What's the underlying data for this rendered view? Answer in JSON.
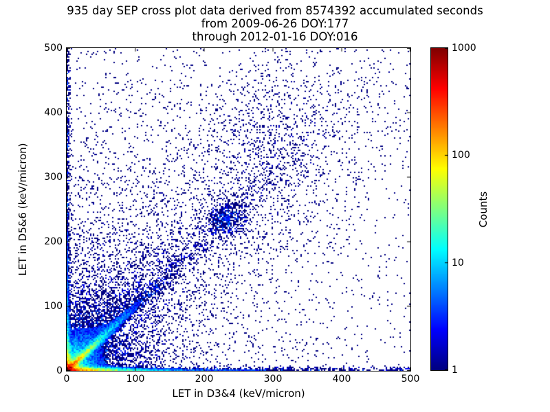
{
  "chart_data": {
    "type": "heatmap",
    "subtype": "2D scatter-density cross plot, point color = log10(counts) via jet colormap",
    "title": "935 day SEP cross plot data derived from 8574392 accumulated seconds\nfrom 2009-06-26 DOY:177\nthrough 2012-01-16 DOY:016",
    "title_lines": [
      "935 day SEP cross plot data derived from 8574392 accumulated seconds",
      "from 2009-06-26 DOY:177",
      "through 2012-01-16 DOY:016"
    ],
    "xlabel": "LET in D3&4 (keV/micron)",
    "ylabel": "LET in D5&6 (keV/micron)",
    "xlim": [
      0,
      500
    ],
    "ylim": [
      0,
      500
    ],
    "xticks": [
      0,
      100,
      200,
      300,
      400,
      500
    ],
    "yticks": [
      0,
      100,
      200,
      300,
      400,
      500
    ],
    "grid": false,
    "legend": "none",
    "colorbar": {
      "label": "Counts",
      "scale": "log",
      "min": 1,
      "max": 1000,
      "ticks": [
        1,
        10,
        100,
        1000
      ],
      "colormap": "jet",
      "position": "right"
    },
    "features": [
      "intense hot spot (~1000 counts, dark red/orange) at origin (0,0)",
      "bright yellow-green-cyan diagonal track y=x from origin fading to blue by (100,100)",
      "dense count band hugging the x-axis (y<6) across full range, green/yellow for x<60",
      "dense count column hugging the y-axis (x<5) up to y=500",
      "fan of faint blue tracks radiating from origin with slopes ~1.3 to ~7",
      "broad sparse blue swath along y~1.1x up to (450,500) with denser cluster near (233,236)",
      "low-level isolated 1-count navy points scattered over entire plane, density decreasing with radius"
    ],
    "density_model": {
      "comment": "lambda(x,y) = expected counts per 2x2-unit bin; points colored jet(log10(c)/3)",
      "components": [
        {
          "kind": "radial",
          "name": "origin-hotspot",
          "cx": 0,
          "cy": 0,
          "terms": [
            [
              1200,
              4
            ],
            [
              60,
              12
            ],
            [
              6,
              35
            ]
          ]
        },
        {
          "kind": "band_h",
          "name": "x-axis-band",
          "y0": 0.8,
          "sigma": 2.8,
          "terms": [
            [
              260,
              22
            ],
            [
              12,
              80
            ],
            [
              2.5,
              900
            ]
          ]
        },
        {
          "kind": "band_h",
          "name": "x-axis-bright-line",
          "y0": 1.1,
          "sigma": 0.9,
          "terms": [
            [
              90,
              35
            ],
            [
              6,
              130
            ]
          ]
        },
        {
          "kind": "band_v",
          "name": "y-axis-column",
          "x0": 0.8,
          "sigma": 2.1,
          "terms": [
            [
              170,
              16
            ],
            [
              8,
              70
            ],
            [
              3,
              1000
            ]
          ]
        },
        {
          "kind": "ray",
          "name": "main-diagonal",
          "m": 1.0,
          "w0": 1.4,
          "wg": 0.03,
          "terms": [
            [
              500,
              15
            ],
            [
              40,
              45
            ],
            [
              3,
              150
            ]
          ]
        },
        {
          "kind": "ray",
          "name": "fan-ray-1",
          "m": 1.3,
          "w0": 1.5,
          "wg": 0.035,
          "terms": [
            [
              6,
              60
            ]
          ]
        },
        {
          "kind": "ray",
          "name": "fan-ray-2",
          "m": 1.65,
          "w0": 1.5,
          "wg": 0.035,
          "terms": [
            [
              4,
              55
            ]
          ]
        },
        {
          "kind": "ray",
          "name": "fan-ray-3",
          "m": 2.2,
          "w0": 1.5,
          "wg": 0.035,
          "terms": [
            [
              3,
              50
            ]
          ]
        },
        {
          "kind": "ray",
          "name": "fan-ray-4",
          "m": 3.1,
          "w0": 1.5,
          "wg": 0.035,
          "terms": [
            [
              2.4,
              46
            ]
          ]
        },
        {
          "kind": "ray",
          "name": "fan-ray-5",
          "m": 4.6,
          "w0": 1.5,
          "wg": 0.035,
          "terms": [
            [
              2,
              42
            ]
          ]
        },
        {
          "kind": "ray",
          "name": "fan-ray-6",
          "m": 7.0,
          "w0": 1.5,
          "wg": 0.035,
          "terms": [
            [
              1.6,
              40
            ]
          ]
        },
        {
          "kind": "ray",
          "name": "sub-diagonal-ray",
          "m": 0.62,
          "w0": 1.5,
          "wg": 0.03,
          "terms": [
            [
              2,
              40
            ]
          ]
        },
        {
          "kind": "ray",
          "name": "broad-upper-swath",
          "m": 1.12,
          "w0": 16,
          "wg": 0.17,
          "terms": [
            [
              0.45,
              260
            ]
          ]
        },
        {
          "kind": "blob",
          "name": "diagonal-cluster",
          "cx": 233,
          "cy": 236,
          "sx": 16,
          "sy": 14,
          "amp": 2.6
        },
        {
          "kind": "blob",
          "name": "upper-swath-cluster",
          "cx": 300,
          "cy": 355,
          "sx": 55,
          "sy": 70,
          "amp": 0.22
        },
        {
          "kind": "ambient",
          "name": "background-scatter",
          "terms": [
            [
              1.1,
              55
            ],
            [
              0.22,
              160
            ],
            [
              0.05,
              420
            ]
          ],
          "floor": 0.006,
          "xboost": 1.2,
          "xbscale": 130
        }
      ],
      "bin_size_units": 2,
      "seed": 1234
    },
    "colors": {
      "background": "#ffffff",
      "axis": "#000000",
      "text": "#000000",
      "count1_color": "#000080",
      "count1000_color": "#800000"
    }
  }
}
